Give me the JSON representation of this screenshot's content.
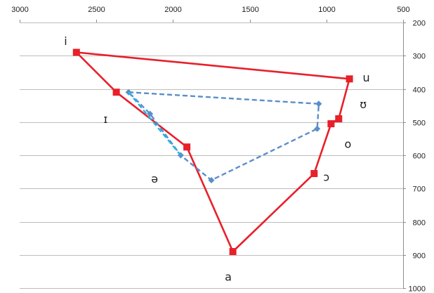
{
  "chart_data": {
    "type": "scatter",
    "title": "",
    "xlabel": "",
    "ylabel": "",
    "x_axis": {
      "reversed": true,
      "position": "top",
      "range": [
        500,
        3000
      ],
      "ticks": [
        3000,
        2500,
        2000,
        1500,
        1000,
        500
      ]
    },
    "y_axis": {
      "reversed": true,
      "position": "right",
      "range": [
        200,
        1000
      ],
      "ticks": [
        200,
        300,
        400,
        500,
        600,
        700,
        800,
        900,
        1000
      ]
    },
    "grid": "horizontal",
    "legend": "none",
    "series": [
      {
        "color": "#e8202a",
        "style": "solid",
        "marker": "square",
        "points": [
          {
            "x": 2630,
            "y": 290
          },
          {
            "x": 850,
            "y": 370
          },
          {
            "x": 920,
            "y": 490
          },
          {
            "x": 970,
            "y": 505
          },
          {
            "x": 1080,
            "y": 655
          },
          {
            "x": 1610,
            "y": 890
          },
          {
            "x": 1910,
            "y": 575
          },
          {
            "x": 2370,
            "y": 410
          },
          {
            "x": 2630,
            "y": 290
          }
        ]
      },
      {
        "color": "#5b8ec9",
        "style": "dashed",
        "marker": "diamond",
        "points": [
          {
            "x": 2290,
            "y": 410
          },
          {
            "x": 1050,
            "y": 445
          },
          {
            "x": 1060,
            "y": 520
          },
          {
            "x": 1750,
            "y": 675
          },
          {
            "x": 1950,
            "y": 600
          },
          {
            "x": 2150,
            "y": 475
          },
          {
            "x": 2290,
            "y": 410
          }
        ]
      },
      {
        "color": "#26b4e6",
        "style": "dashed",
        "marker": "none",
        "points": [
          {
            "x": 2290,
            "y": 410
          },
          {
            "x": 1950,
            "y": 600
          }
        ]
      }
    ],
    "annotations": [
      {
        "text": "i",
        "x": 2700,
        "y": 255
      },
      {
        "text": "u",
        "x": 740,
        "y": 365
      },
      {
        "text": "ʊ",
        "x": 760,
        "y": 445
      },
      {
        "text": "ɪ",
        "x": 2440,
        "y": 490
      },
      {
        "text": "o",
        "x": 860,
        "y": 565
      },
      {
        "text": "ɔ",
        "x": 1000,
        "y": 665
      },
      {
        "text": "ə",
        "x": 2120,
        "y": 670
      },
      {
        "text": "a",
        "x": 1640,
        "y": 965
      }
    ]
  }
}
